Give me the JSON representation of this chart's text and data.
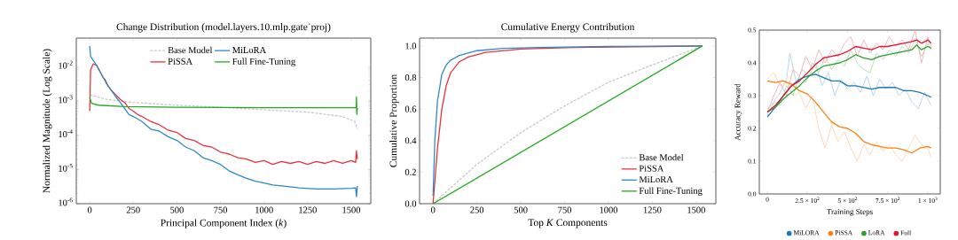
{
  "chart_data": [
    {
      "type": "line",
      "title": "Change Distribution (model.layers.10.mlp.gate˙proj)",
      "xlabel": "Principal Component Index (*k*)",
      "ylabel": "Normalized Magnitude (Log Scale)",
      "log": "y",
      "legend": "top",
      "grid": false,
      "xlim": [
        -77,
        1612
      ],
      "ylim": [
        1e-06,
        0.068
      ],
      "xticks": [
        0,
        250,
        500,
        750,
        1000,
        1250,
        1500
      ],
      "yticks": [
        {
          "value": 1e-06,
          "label": "10$^{-6}$"
        },
        {
          "value": 1e-05,
          "label": "10$^{-5}$"
        },
        {
          "value": 0.0001,
          "label": "10$^{-4}$"
        },
        {
          "value": 0.001,
          "label": "10$^{-3}$"
        },
        {
          "value": 0.01,
          "label": "10$^{-2}$"
        }
      ],
      "series": [
        {
          "name": "Base Model",
          "color": "#c8c8c8",
          "line_style": "dashed",
          "x": [
            0,
            100,
            250,
            500,
            750,
            1000,
            1250,
            1450,
            1520,
            1535
          ],
          "values": [
            0.0015,
            0.0011,
            0.0009,
            0.00075,
            0.00065,
            0.00055,
            0.00047,
            0.00035,
            0.00025,
            0.00015
          ]
        },
        {
          "name": "PiSSA",
          "color": "#e8323c",
          "line_style": "solid",
          "x": [
            0,
            5,
            20,
            40,
            60,
            75,
            90,
            100,
            125,
            150,
            175,
            200,
            225,
            250,
            275,
            300,
            350,
            400,
            450,
            500,
            550,
            600,
            650,
            700,
            750,
            800,
            850,
            900,
            950,
            1000,
            1050,
            1100,
            1150,
            1200,
            1250,
            1300,
            1350,
            1400,
            1450,
            1500,
            1525,
            1530,
            1535
          ],
          "values": [
            0.0005,
            0.008,
            0.012,
            0.011,
            0.007,
            0.005,
            0.004,
            0.003,
            0.002,
            0.0015,
            0.0011,
            0.0009,
            0.0006,
            0.0005,
            0.0004,
            0.00035,
            0.00025,
            0.0002,
            0.00014,
            0.00012,
            8e-05,
            7e-05,
            5e-05,
            4.5e-05,
            3.2e-05,
            2.8e-05,
            2.2e-05,
            2e-05,
            1.6e-05,
            1.8e-05,
            1.4e-05,
            1.7e-05,
            1.5e-05,
            1.7e-05,
            1.4e-05,
            1.7e-05,
            1.5e-05,
            1.8e-05,
            1.5e-05,
            1.8e-05,
            1.6e-05,
            3.5e-05,
            2e-05
          ]
        },
        {
          "name": "MiLoRA",
          "color": "#2a8ac9",
          "line_style": "solid",
          "x": [
            0,
            5,
            30,
            60,
            100,
            125,
            150,
            175,
            200,
            225,
            250,
            300,
            350,
            400,
            450,
            500,
            550,
            600,
            650,
            700,
            750,
            800,
            850,
            900,
            950,
            1000,
            1050,
            1100,
            1200,
            1300,
            1400,
            1500,
            1525,
            1530,
            1535
          ],
          "values": [
            0.04,
            0.02,
            0.013,
            0.007,
            0.003,
            0.002,
            0.0013,
            0.0009,
            0.0006,
            0.0004,
            0.00035,
            0.00025,
            0.00015,
            0.00013,
            9e-05,
            7e-05,
            4.5e-05,
            3.5e-05,
            2.2e-05,
            1.8e-05,
            1.4e-05,
            9e-06,
            7e-06,
            5.5e-06,
            4.5e-06,
            4e-06,
            3.5e-06,
            3.3e-06,
            2.9e-06,
            2.7e-06,
            2.7e-06,
            2.8e-06,
            2.9e-06,
            1.6e-06,
            3.3e-06
          ]
        },
        {
          "name": "Full Fine-Tuning",
          "color": "#22aa22",
          "line_style": "solid",
          "x": [
            0,
            10,
            50,
            200,
            500,
            1000,
            1500,
            1528,
            1530,
            1532,
            1535
          ],
          "values": [
            0.0013,
            0.00085,
            0.00075,
            0.00068,
            0.00065,
            0.00063,
            0.00063,
            0.00063,
            0.0013,
            0.0004,
            0.00063
          ]
        }
      ]
    },
    {
      "type": "line",
      "title": "Cumulative Energy Contribution",
      "xlabel": "Top *K* Components",
      "ylabel": "Cumulative Proportion",
      "legend": "bottom right",
      "grid": false,
      "xlim": [
        -77,
        1612
      ],
      "ylim": [
        0,
        1.05
      ],
      "xticks": [
        0,
        250,
        500,
        750,
        1000,
        1250,
        1500
      ],
      "yticks": [
        {
          "value": 0,
          "label": "0.0"
        },
        {
          "value": 0.2,
          "label": "0.2"
        },
        {
          "value": 0.4,
          "label": "0.4"
        },
        {
          "value": 0.6,
          "label": "0.6"
        },
        {
          "value": 0.8,
          "label": "0.8"
        },
        {
          "value": 1,
          "label": "1.0"
        }
      ],
      "series": [
        {
          "name": "Base Model",
          "color": "#c8c8c8",
          "line_style": "dashed",
          "x": [
            0,
            250,
            500,
            750,
            1000,
            1250,
            1535
          ],
          "values": [
            0,
            0.25,
            0.45,
            0.62,
            0.77,
            0.88,
            1.0
          ]
        },
        {
          "name": "PiSSA",
          "color": "#e8323c",
          "line_style": "solid",
          "x": [
            0,
            25,
            50,
            75,
            100,
            150,
            200,
            300,
            500,
            800,
            1535
          ],
          "values": [
            0,
            0.35,
            0.6,
            0.75,
            0.83,
            0.9,
            0.93,
            0.96,
            0.98,
            0.99,
            1.0
          ]
        },
        {
          "name": "MiLoRA",
          "color": "#2a8ac9",
          "line_style": "solid",
          "x": [
            0,
            10,
            25,
            50,
            75,
            100,
            150,
            250,
            400,
            600,
            1000,
            1535
          ],
          "values": [
            0.05,
            0.4,
            0.65,
            0.82,
            0.88,
            0.91,
            0.94,
            0.97,
            0.985,
            0.99,
            0.997,
            1.0
          ]
        },
        {
          "name": "Full Fine-Tuning",
          "color": "#22aa22",
          "line_style": "solid",
          "x": [
            0,
            1535
          ],
          "values": [
            0,
            1.0
          ]
        }
      ]
    },
    {
      "type": "line",
      "xlabel": "Training Steps",
      "ylabel": "Accuracy Reward",
      "legend": "bottom",
      "grid": false,
      "xlim": [
        -50,
        1077
      ],
      "ylim": [
        0,
        0.5
      ],
      "xticks": [
        0,
        {
          "value": 250,
          "label": "2.5 × 10$^{2}$"
        },
        {
          "value": 500,
          "label": "5 × 10$^{2}$"
        },
        {
          "value": 750,
          "label": "7.5 × 10$^{2}$"
        },
        {
          "value": 1000,
          "label": "1 × 10$^{3}$"
        }
      ],
      "yticks": [
        {
          "value": 0,
          "label": "0.0"
        },
        {
          "value": 0.1,
          "label": "0.1"
        },
        {
          "value": 0.2,
          "label": "0.2"
        },
        {
          "value": 0.3,
          "label": "0.3"
        },
        {
          "value": 0.4,
          "label": "0.4"
        },
        {
          "value": 0.5,
          "label": "0.5"
        }
      ],
      "series": [
        {
          "color": "#a9cce6",
          "line_style": "solid",
          "x": [
            0,
            40,
            80,
            120,
            140,
            180,
            220,
            260,
            300,
            340,
            380,
            420,
            460,
            500,
            540,
            580,
            620,
            660,
            700,
            740,
            780,
            820,
            860,
            900,
            940,
            980,
            1020
          ],
          "values": [
            0.24,
            0.28,
            0.31,
            0.35,
            0.43,
            0.34,
            0.38,
            0.36,
            0.4,
            0.33,
            0.37,
            0.3,
            0.35,
            0.32,
            0.34,
            0.31,
            0.36,
            0.3,
            0.35,
            0.32,
            0.34,
            0.3,
            0.32,
            0.28,
            0.26,
            0.31,
            0.27
          ]
        },
        {
          "color": "#fdd0ab",
          "line_style": "solid",
          "x": [
            0,
            40,
            80,
            120,
            160,
            200,
            240,
            280,
            320,
            360,
            400,
            440,
            480,
            520,
            560,
            600,
            640,
            680,
            720,
            760,
            800,
            840,
            880,
            920,
            960,
            1000,
            1020
          ],
          "values": [
            0.35,
            0.37,
            0.33,
            0.34,
            0.3,
            0.31,
            0.26,
            0.3,
            0.2,
            0.14,
            0.21,
            0.16,
            0.19,
            0.14,
            0.1,
            0.15,
            0.12,
            0.16,
            0.13,
            0.15,
            0.12,
            0.1,
            0.14,
            0.18,
            0.15,
            0.14,
            0.11
          ]
        },
        {
          "color": "#a8d8a8",
          "line_style": "solid",
          "x": [
            0,
            40,
            80,
            120,
            160,
            200,
            240,
            280,
            320,
            360,
            400,
            440,
            480,
            520,
            560,
            600,
            640,
            680,
            720,
            760,
            800,
            840,
            880,
            920,
            960,
            1000,
            1020
          ],
          "values": [
            0.26,
            0.28,
            0.27,
            0.33,
            0.3,
            0.36,
            0.34,
            0.4,
            0.37,
            0.42,
            0.38,
            0.41,
            0.39,
            0.44,
            0.4,
            0.38,
            0.37,
            0.43,
            0.41,
            0.44,
            0.42,
            0.45,
            0.43,
            0.47,
            0.42,
            0.46,
            0.44
          ]
        },
        {
          "color": "#f4a5a8",
          "line_style": "solid",
          "x": [
            0,
            40,
            80,
            120,
            160,
            200,
            240,
            280,
            320,
            360,
            400,
            440,
            480,
            520,
            560,
            600,
            640,
            680,
            720,
            760,
            800,
            840,
            880,
            920,
            960,
            1000,
            1020
          ],
          "values": [
            0.25,
            0.3,
            0.34,
            0.3,
            0.38,
            0.36,
            0.42,
            0.38,
            0.44,
            0.4,
            0.44,
            0.42,
            0.46,
            0.48,
            0.42,
            0.47,
            0.43,
            0.46,
            0.44,
            0.48,
            0.45,
            0.47,
            0.44,
            0.5,
            0.4,
            0.48,
            0.45
          ]
        },
        {
          "name": "MiLORA",
          "color": "#1f77b4",
          "line_style": "solid",
          "x": [
            0,
            50,
            100,
            150,
            200,
            250,
            300,
            350,
            400,
            450,
            500,
            550,
            600,
            650,
            700,
            750,
            800,
            850,
            900,
            950,
            1000,
            1020
          ],
          "values": [
            0.235,
            0.265,
            0.3,
            0.33,
            0.35,
            0.36,
            0.365,
            0.355,
            0.345,
            0.345,
            0.33,
            0.33,
            0.325,
            0.32,
            0.325,
            0.325,
            0.325,
            0.315,
            0.315,
            0.31,
            0.3,
            0.295
          ]
        },
        {
          "name": "PiSSA",
          "color": "#ff7f0e",
          "line_style": "solid",
          "x": [
            0,
            50,
            100,
            150,
            200,
            250,
            300,
            350,
            400,
            450,
            500,
            550,
            600,
            650,
            700,
            750,
            800,
            850,
            900,
            950,
            1000,
            1020
          ],
          "values": [
            0.345,
            0.34,
            0.345,
            0.335,
            0.315,
            0.305,
            0.28,
            0.25,
            0.22,
            0.205,
            0.2,
            0.185,
            0.16,
            0.15,
            0.145,
            0.14,
            0.14,
            0.135,
            0.125,
            0.14,
            0.145,
            0.14
          ]
        },
        {
          "name": "LoRA",
          "color": "#2ca02c",
          "line_style": "solid",
          "x": [
            0,
            50,
            100,
            150,
            200,
            250,
            300,
            350,
            400,
            450,
            500,
            550,
            600,
            650,
            700,
            750,
            800,
            850,
            900,
            930,
            960,
            1000,
            1020
          ],
          "values": [
            0.25,
            0.265,
            0.29,
            0.31,
            0.33,
            0.355,
            0.375,
            0.39,
            0.395,
            0.4,
            0.41,
            0.425,
            0.415,
            0.41,
            0.42,
            0.425,
            0.43,
            0.435,
            0.44,
            0.455,
            0.44,
            0.45,
            0.445
          ]
        },
        {
          "name": "Full",
          "color": "#e8102f",
          "line_style": "solid",
          "x": [
            0,
            50,
            100,
            150,
            200,
            250,
            300,
            350,
            400,
            450,
            500,
            550,
            600,
            650,
            700,
            750,
            800,
            850,
            900,
            930,
            960,
            1000,
            1020
          ],
          "values": [
            0.25,
            0.27,
            0.3,
            0.33,
            0.345,
            0.37,
            0.395,
            0.415,
            0.42,
            0.425,
            0.435,
            0.45,
            0.445,
            0.44,
            0.45,
            0.45,
            0.455,
            0.46,
            0.465,
            0.47,
            0.46,
            0.47,
            0.46
          ]
        }
      ]
    }
  ]
}
